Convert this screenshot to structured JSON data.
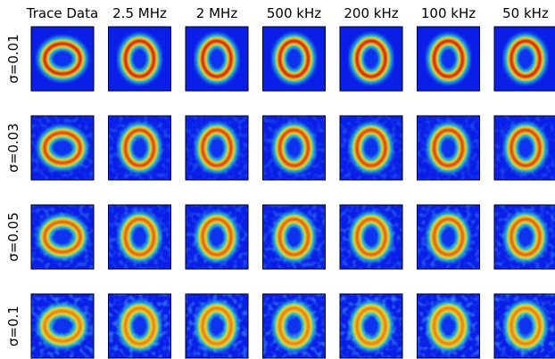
{
  "columns": [
    "Trace Data",
    "2.5 MHz",
    "2 MHz",
    "500 kHz",
    "200 kHz",
    "100 kHz",
    "50 kHz"
  ],
  "rows": [
    "σ=0.01",
    "σ=0.03",
    "σ=0.05",
    "σ=0.1"
  ]
}
